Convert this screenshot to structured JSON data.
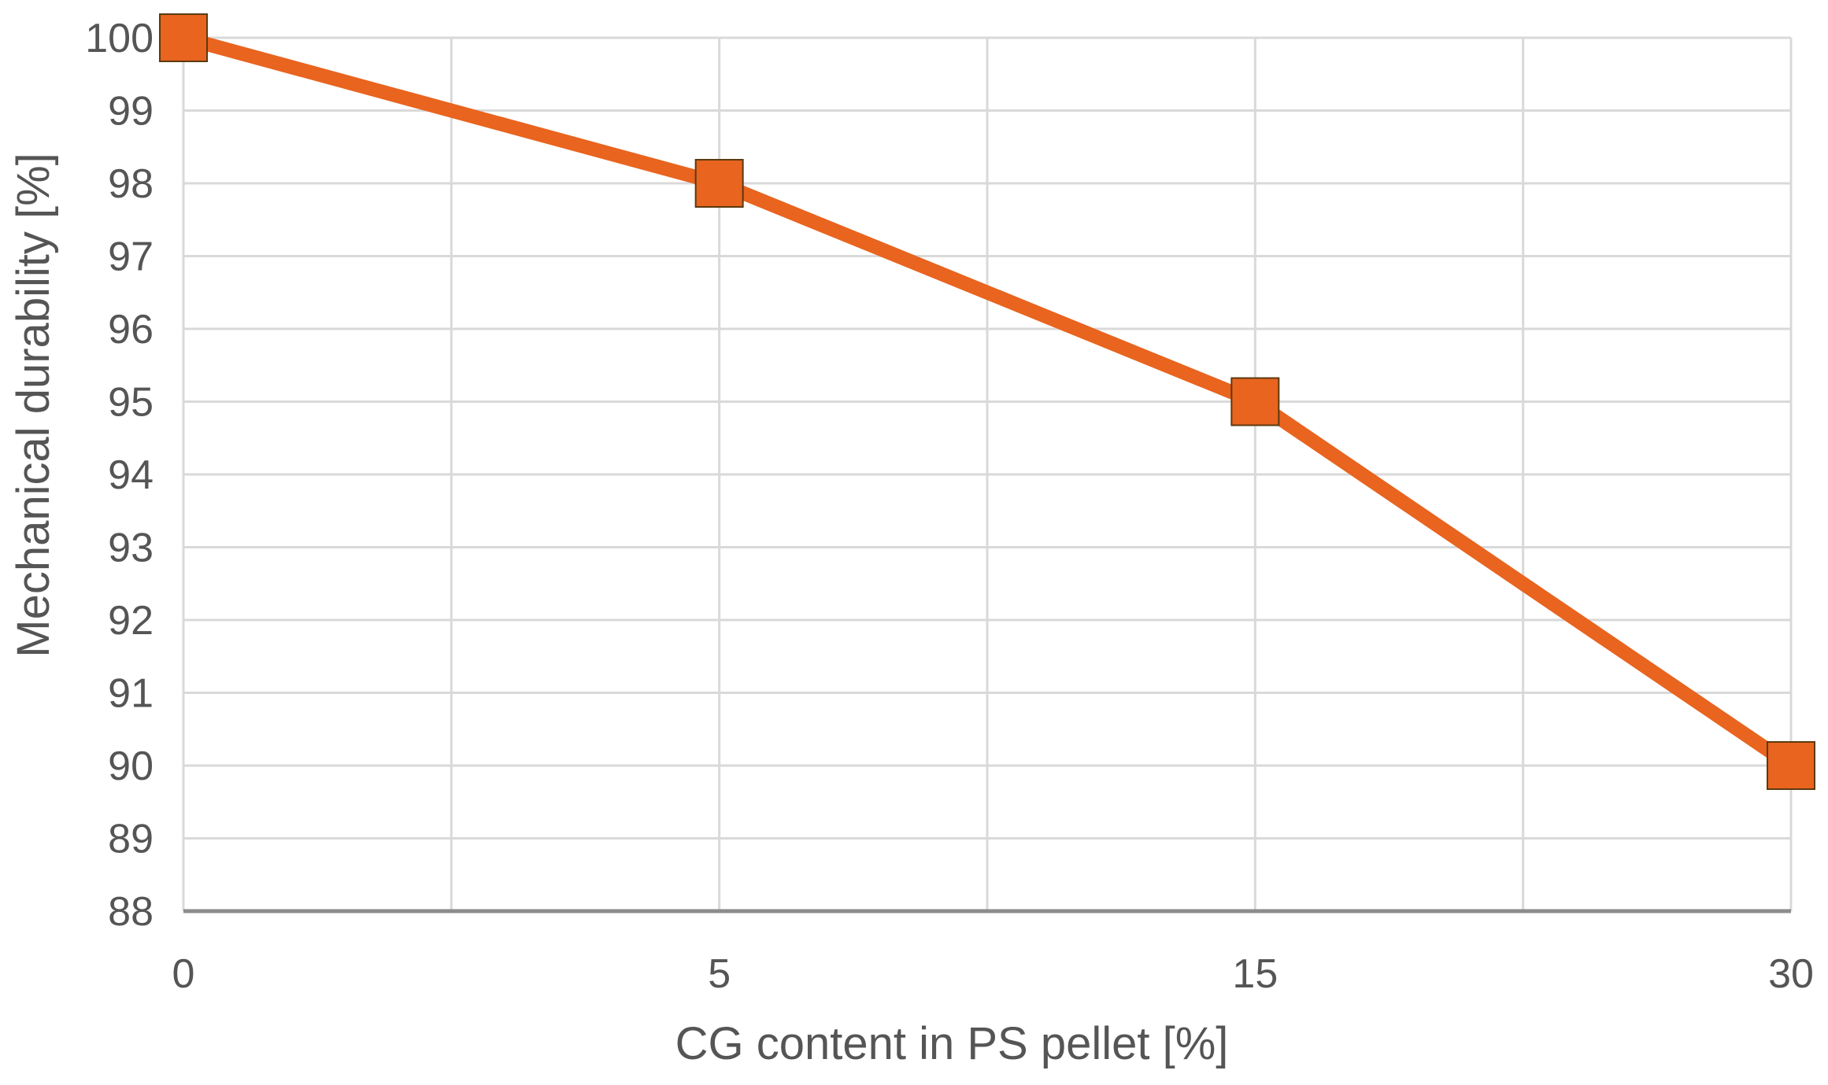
{
  "chart_data": {
    "type": "line",
    "title": "",
    "xlabel": "CG content in PS pellet [%]",
    "ylabel": "Mechanical durability [%]",
    "categories": [
      "0",
      "5",
      "15",
      "30"
    ],
    "ylim": [
      88,
      100
    ],
    "yticks": [
      "88",
      "89",
      "90",
      "91",
      "92",
      "93",
      "94",
      "95",
      "96",
      "97",
      "98",
      "99",
      "100"
    ],
    "grid": true,
    "legend": "none",
    "series": [
      {
        "values": [
          100,
          98,
          95,
          90
        ],
        "color": "#E8641F",
        "marker": "square"
      }
    ],
    "colors": {
      "gridline": "#D9D9D9",
      "baseline": "#8C8C8C",
      "marker_edge": "#5B3A10"
    }
  }
}
